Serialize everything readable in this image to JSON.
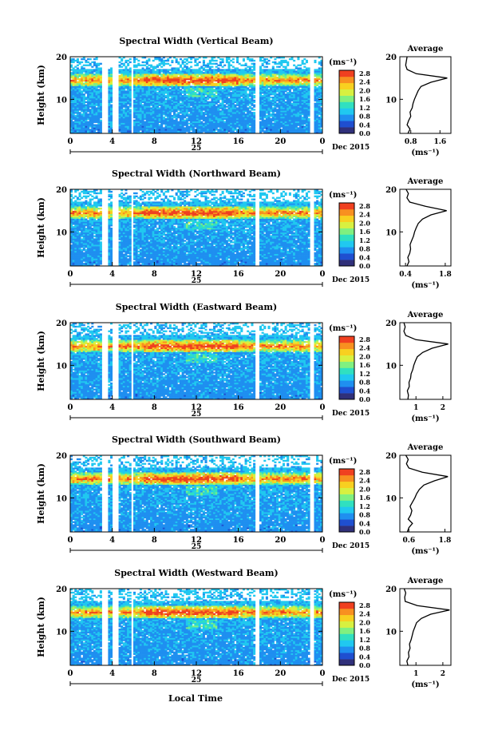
{
  "shared": {
    "cbar_unit": "(ms⁻¹)",
    "avg_title": "Average",
    "avg_unit": "(ms⁻¹)",
    "date_label": "Dec 2015",
    "day_label": "25",
    "x_axis_title": "Local Time",
    "y_axis_title": "Height (km)",
    "x_ticks": [
      "0",
      "4",
      "8",
      "12",
      "16",
      "20",
      "0"
    ],
    "y_ticks": [
      "20",
      "10"
    ],
    "cbar_ticks": [
      "2.8",
      "2.4",
      "2.0",
      "1.6",
      "1.2",
      "0.8",
      "0.4",
      "0.0"
    ],
    "colormap": [
      "#30307a",
      "#1f4fd0",
      "#1f8ff0",
      "#20c8f0",
      "#30e0c0",
      "#80f080",
      "#d8f040",
      "#f8d020",
      "#f89020",
      "#f04020"
    ]
  },
  "chart_data": [
    {
      "type": "heatmap",
      "title": "Spectral Width (Vertical Beam)",
      "x_range_hours": [
        0,
        24
      ],
      "y_range_km": [
        2,
        20
      ],
      "color_range": [
        0.0,
        2.8
      ],
      "data_gaps_hours": [
        [
          3.1,
          3.5
        ],
        [
          4.1,
          4.6
        ],
        [
          5.7,
          6.0
        ],
        [
          17.6,
          18.0
        ],
        [
          22.9,
          23.2
        ]
      ],
      "high_width_layer_km": [
        13,
        16
      ],
      "average_profile": {
        "x_ticks": [
          "0.8",
          "1.6"
        ],
        "xlim": [
          0.5,
          1.9
        ],
        "height_km": [
          2,
          3,
          4,
          5,
          6,
          7,
          8,
          9,
          10,
          11,
          12,
          13,
          14,
          15,
          16,
          17,
          18,
          19,
          20
        ],
        "width": [
          0.72,
          0.78,
          0.7,
          0.74,
          0.8,
          0.78,
          0.84,
          0.86,
          0.9,
          0.95,
          1.0,
          1.08,
          1.35,
          1.8,
          0.95,
          0.7,
          0.66,
          0.68,
          0.7
        ]
      }
    },
    {
      "type": "heatmap",
      "title": "Spectral Width (Northward Beam)",
      "x_range_hours": [
        0,
        24
      ],
      "y_range_km": [
        2,
        20
      ],
      "color_range": [
        0.0,
        2.8
      ],
      "data_gaps_hours": [
        [
          3.1,
          3.5
        ],
        [
          4.1,
          4.6
        ],
        [
          5.7,
          6.0
        ],
        [
          17.6,
          18.0
        ],
        [
          22.9,
          23.2
        ]
      ],
      "high_width_layer_km": [
        13,
        16
      ],
      "average_profile": {
        "x_ticks": [
          "0.4",
          "1.8"
        ],
        "xlim": [
          0.2,
          2.0
        ],
        "height_km": [
          2,
          3,
          4,
          5,
          6,
          7,
          8,
          9,
          10,
          11,
          12,
          13,
          14,
          15,
          16,
          17,
          18,
          19,
          20
        ],
        "width": [
          0.45,
          0.52,
          0.48,
          0.55,
          0.58,
          0.56,
          0.62,
          0.68,
          0.72,
          0.78,
          0.85,
          1.0,
          1.3,
          1.85,
          1.1,
          0.55,
          0.45,
          0.5,
          0.42
        ]
      }
    },
    {
      "type": "heatmap",
      "title": "Spectral Width (Eastward Beam)",
      "x_range_hours": [
        0,
        24
      ],
      "y_range_km": [
        2,
        20
      ],
      "color_range": [
        0.0,
        2.8
      ],
      "data_gaps_hours": [
        [
          3.1,
          3.5
        ],
        [
          4.1,
          4.6
        ],
        [
          5.7,
          6.0
        ],
        [
          17.6,
          18.0
        ],
        [
          22.9,
          23.2
        ]
      ],
      "high_width_layer_km": [
        13,
        16
      ],
      "average_profile": {
        "x_ticks": [
          "1",
          "2"
        ],
        "xlim": [
          0.4,
          2.3
        ],
        "height_km": [
          2,
          3,
          4,
          5,
          6,
          7,
          8,
          9,
          10,
          11,
          12,
          13,
          14,
          15,
          16,
          17,
          18,
          19,
          20
        ],
        "width": [
          0.7,
          0.72,
          0.68,
          0.75,
          0.74,
          0.8,
          0.82,
          0.88,
          0.92,
          0.98,
          1.05,
          1.25,
          1.6,
          2.2,
          1.0,
          0.62,
          0.55,
          0.6,
          0.55
        ]
      }
    },
    {
      "type": "heatmap",
      "title": "Spectral Width (Southward Beam)",
      "x_range_hours": [
        0,
        24
      ],
      "y_range_km": [
        2,
        20
      ],
      "color_range": [
        0.0,
        2.8
      ],
      "data_gaps_hours": [
        [
          3.1,
          3.5
        ],
        [
          4.1,
          4.6
        ],
        [
          5.7,
          6.0
        ],
        [
          17.6,
          18.0
        ],
        [
          22.9,
          23.2
        ]
      ],
      "high_width_layer_km": [
        13,
        16
      ],
      "average_profile": {
        "x_ticks": [
          "0.6",
          "1.8"
        ],
        "xlim": [
          0.3,
          2.0
        ],
        "height_km": [
          2,
          3,
          4,
          5,
          6,
          7,
          8,
          9,
          10,
          11,
          12,
          13,
          14,
          15,
          16,
          17,
          18,
          19,
          20
        ],
        "width": [
          0.55,
          0.6,
          0.72,
          0.58,
          0.66,
          0.7,
          0.64,
          0.72,
          0.8,
          0.86,
          0.95,
          1.1,
          1.45,
          1.9,
          1.05,
          0.6,
          0.52,
          0.58,
          0.5
        ]
      }
    },
    {
      "type": "heatmap",
      "title": "Spectral Width (Westward Beam)",
      "x_range_hours": [
        0,
        24
      ],
      "y_range_km": [
        2,
        20
      ],
      "color_range": [
        0.0,
        2.8
      ],
      "data_gaps_hours": [
        [
          3.1,
          3.5
        ],
        [
          4.1,
          4.6
        ],
        [
          5.7,
          6.0
        ],
        [
          17.6,
          18.0
        ],
        [
          22.9,
          23.2
        ]
      ],
      "high_width_layer_km": [
        13,
        16
      ],
      "average_profile": {
        "x_ticks": [
          "1",
          "2"
        ],
        "xlim": [
          0.4,
          2.3
        ],
        "height_km": [
          2,
          3,
          4,
          5,
          6,
          7,
          8,
          9,
          10,
          11,
          12,
          13,
          14,
          15,
          16,
          17,
          18,
          19,
          20
        ],
        "width": [
          0.7,
          0.66,
          0.74,
          0.72,
          0.78,
          0.76,
          0.82,
          0.86,
          0.9,
          0.96,
          1.02,
          1.2,
          1.55,
          2.25,
          1.05,
          0.6,
          0.58,
          0.62,
          0.56
        ]
      }
    }
  ]
}
